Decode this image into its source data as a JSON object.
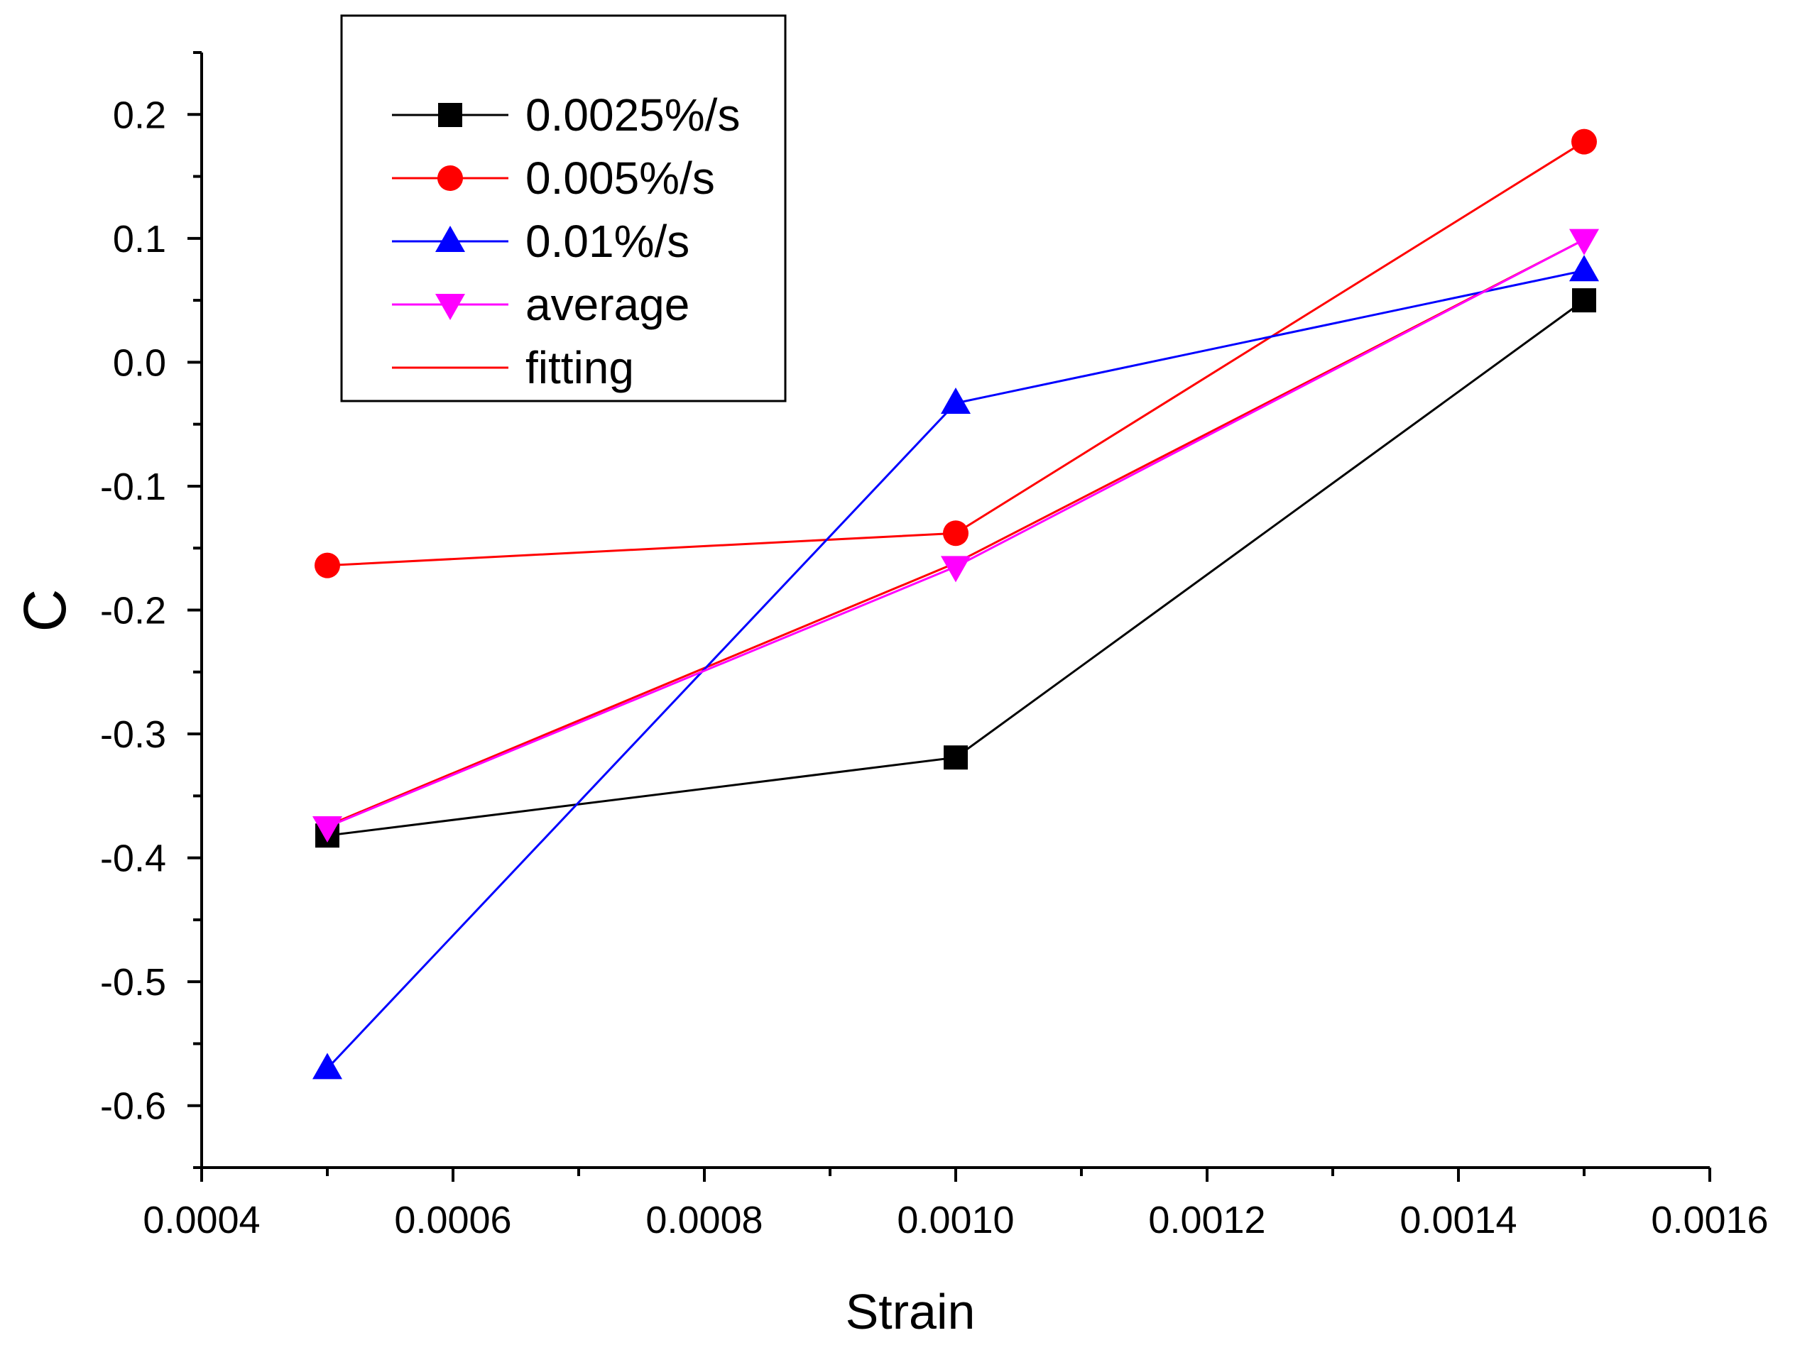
{
  "chart_data": {
    "type": "line",
    "title": "",
    "xlabel": "Strain",
    "ylabel": "C",
    "xlim": [
      0.0004,
      0.0016
    ],
    "ylim": [
      -0.65,
      0.25
    ],
    "x_ticks": [
      {
        "value": 0.0004,
        "label": "0.0004"
      },
      {
        "value": 0.0006,
        "label": "0.0006"
      },
      {
        "value": 0.0008,
        "label": "0.0008"
      },
      {
        "value": 0.001,
        "label": "0.0010"
      },
      {
        "value": 0.0012,
        "label": "0.0012"
      },
      {
        "value": 0.0014,
        "label": "0.0014"
      },
      {
        "value": 0.0016,
        "label": "0.0016"
      }
    ],
    "y_ticks": [
      {
        "value": 0.2,
        "label": "0.2"
      },
      {
        "value": 0.1,
        "label": "0.1"
      },
      {
        "value": 0.0,
        "label": "0.0"
      },
      {
        "value": -0.1,
        "label": "-0.1"
      },
      {
        "value": -0.2,
        "label": "-0.2"
      },
      {
        "value": -0.3,
        "label": "-0.3"
      },
      {
        "value": -0.4,
        "label": "-0.4"
      },
      {
        "value": -0.5,
        "label": "-0.5"
      },
      {
        "value": -0.6,
        "label": "-0.6"
      }
    ],
    "grid": false,
    "legend_position": "top-left",
    "x": [
      0.0005,
      0.001,
      0.0015
    ],
    "series": [
      {
        "name": "0.0025%/s",
        "values": [
          -0.382,
          -0.319,
          0.05
        ],
        "color": "#000000",
        "marker": "square"
      },
      {
        "name": "0.005%/s",
        "values": [
          -0.164,
          -0.138,
          0.178
        ],
        "color": "#ff0000",
        "marker": "circle"
      },
      {
        "name": "0.01%/s",
        "values": [
          -0.57,
          -0.033,
          0.074
        ],
        "color": "#0000ff",
        "marker": "triangle-up"
      },
      {
        "name": "average",
        "values": [
          -0.375,
          -0.165,
          0.099
        ],
        "color": "#ff00ff",
        "marker": "triangle-down"
      },
      {
        "name": "fitting",
        "values": [
          -0.374,
          -0.162,
          0.099
        ],
        "color": "#ff0000",
        "marker": "none"
      }
    ]
  }
}
